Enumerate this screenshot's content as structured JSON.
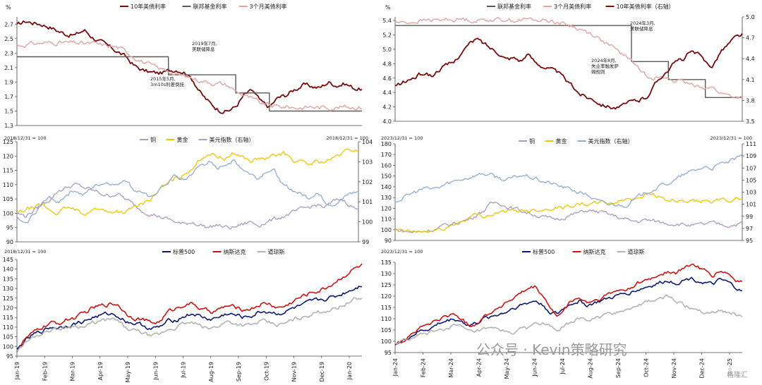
{
  "watermark": {
    "text": "公众号 · Kevin策略研究",
    "corner": "格隆汇"
  },
  "colors": {
    "dark_red": "#7b0a0a",
    "light_pink": "#e4a4a4",
    "grey": "#5a5a5a",
    "copper": "#a99bc4",
    "gold": "#f2c400",
    "dxy": "#8fadd6",
    "sp500": "#0b1a7a",
    "nasdaq": "#d01414",
    "dow": "#b4b4b4"
  },
  "chart_data": [
    {
      "id": "rates_2019",
      "type": "line",
      "unit": "%",
      "legend": [
        "10年美债利率",
        "联邦基金利率",
        "3个月美债利率"
      ],
      "yticks": [
        "2.7",
        "2.5",
        "2.3",
        "2.1",
        "1.9",
        "1.7",
        "1.5",
        "1.3"
      ],
      "ylim": [
        1.3,
        2.8
      ],
      "annotations": [
        "2015年5月,\n3m10s利差倒挂",
        "2019年7月,\n美联储降息"
      ],
      "series": [
        {
          "name": "10年美债利率",
          "values": [
            2.68,
            2.74,
            2.72,
            2.7,
            2.66,
            2.6,
            2.56,
            2.55,
            2.62,
            2.52,
            2.45,
            2.38,
            2.32,
            2.24,
            2.12,
            2.06,
            2.03,
            2.02,
            2.05,
            2.08,
            2.04,
            1.92,
            1.72,
            1.6,
            1.52,
            1.5,
            1.56,
            1.72,
            1.78,
            1.62,
            1.55,
            1.68,
            1.72,
            1.8,
            1.86,
            1.84,
            1.82,
            1.9,
            1.86,
            1.88,
            1.82,
            1.8
          ]
        },
        {
          "name": "联邦基金利率",
          "values": [
            2.25,
            2.25,
            2.25,
            2.25,
            2.25,
            2.25,
            2.25,
            2.25,
            2.25,
            2.25,
            2.25,
            2.25,
            2.25,
            2.25,
            2.25,
            2.25,
            2.25,
            2.25,
            2.0,
            2.0,
            2.0,
            2.0,
            2.0,
            2.0,
            2.0,
            2.0,
            1.75,
            1.75,
            1.75,
            1.75,
            1.5,
            1.5,
            1.5,
            1.5,
            1.5,
            1.5,
            1.5,
            1.5,
            1.5,
            1.5,
            1.5,
            1.5
          ]
        },
        {
          "name": "3个月美债利率",
          "values": [
            2.4,
            2.42,
            2.43,
            2.44,
            2.44,
            2.45,
            2.44,
            2.44,
            2.43,
            2.43,
            2.41,
            2.4,
            2.38,
            2.32,
            2.25,
            2.18,
            2.12,
            2.08,
            2.06,
            2.0,
            1.98,
            1.95,
            1.92,
            1.9,
            1.88,
            1.86,
            1.78,
            1.72,
            1.66,
            1.6,
            1.58,
            1.56,
            1.56,
            1.55,
            1.55,
            1.56,
            1.55,
            1.55,
            1.55,
            1.56,
            1.56,
            1.55
          ]
        }
      ]
    },
    {
      "id": "rates_2024",
      "type": "line",
      "unit": "%",
      "legend": [
        "联邦基金利率",
        "3个月美债利率",
        "10年美债利率（右轴）"
      ],
      "yticks": [
        "5.4",
        "5.2",
        "5.0",
        "4.8",
        "4.6",
        "4.4",
        "4.2",
        "4.0"
      ],
      "ylim": [
        4.0,
        5.45
      ],
      "yticks_right": [
        "5.0",
        "4.7",
        "4.4",
        "4.1",
        "3.8",
        "3.5"
      ],
      "ylim_right": [
        3.5,
        5.0
      ],
      "annotations": [
        "2024年3月,\n美联储降息",
        "2024年8月,\n失业率触发萨\n姆规则"
      ],
      "series": [
        {
          "name": "联邦基金利率",
          "values": [
            5.33,
            5.33,
            5.33,
            5.33,
            5.33,
            5.33,
            5.33,
            5.33,
            5.33,
            5.33,
            5.33,
            5.33,
            5.33,
            5.33,
            5.33,
            5.33,
            5.33,
            5.33,
            5.33,
            5.33,
            5.33,
            5.33,
            5.33,
            5.33,
            5.33,
            5.33,
            5.33,
            5.33,
            5.33,
            5.33,
            5.33,
            5.33,
            4.83,
            4.83,
            4.83,
            4.83,
            4.83,
            4.58,
            4.58,
            4.58,
            4.58,
            4.58,
            4.33,
            4.33,
            4.33,
            4.33,
            4.33,
            4.33
          ]
        },
        {
          "name": "3个月美债利率",
          "values": [
            5.38,
            5.37,
            5.38,
            5.39,
            5.4,
            5.41,
            5.4,
            5.42,
            5.41,
            5.42,
            5.41,
            5.4,
            5.41,
            5.42,
            5.41,
            5.42,
            5.4,
            5.41,
            5.42,
            5.4,
            5.41,
            5.4,
            5.38,
            5.35,
            5.32,
            5.28,
            5.24,
            5.2,
            5.12,
            5.05,
            4.98,
            4.92,
            4.85,
            4.72,
            4.65,
            4.62,
            4.6,
            4.6,
            4.56,
            4.54,
            4.5,
            4.5,
            4.48,
            4.46,
            4.4,
            4.36,
            4.34,
            4.33
          ]
        },
        {
          "name": "10年美债利率（右轴）",
          "values": [
            4.0,
            4.05,
            4.1,
            4.15,
            4.2,
            4.15,
            4.25,
            4.3,
            4.35,
            4.5,
            4.6,
            4.68,
            4.62,
            4.55,
            4.5,
            4.4,
            4.42,
            4.38,
            4.45,
            4.35,
            4.3,
            4.25,
            4.2,
            4.1,
            4.0,
            3.9,
            3.85,
            3.82,
            3.75,
            3.72,
            3.7,
            3.72,
            3.78,
            3.8,
            3.85,
            4.0,
            4.15,
            4.25,
            4.35,
            4.4,
            4.5,
            4.45,
            4.35,
            4.3,
            4.5,
            4.6,
            4.7,
            4.75
          ]
        }
      ]
    },
    {
      "id": "assets_2019",
      "type": "line",
      "note": "2018/12/31 = 100",
      "note_right": "2018/12/31 = 100",
      "legend": [
        "铜",
        "黄金",
        "美元指数（右轴）"
      ],
      "yticks": [
        "125",
        "120",
        "115",
        "110",
        "105",
        "100",
        "95",
        "90"
      ],
      "ylim": [
        90,
        125
      ],
      "yticks_right": [
        "104",
        "103",
        "102",
        "101",
        "100",
        "99"
      ],
      "ylim_right": [
        99,
        104
      ],
      "series": [
        {
          "name": "铜",
          "values": [
            100,
            99,
            101,
            103,
            105,
            108,
            109,
            110,
            109,
            108,
            107,
            106,
            107,
            105,
            103,
            101,
            100,
            99,
            98,
            97,
            96,
            97,
            96,
            95,
            96,
            95,
            95,
            96,
            97,
            96,
            97,
            98,
            99,
            100,
            101,
            102,
            103,
            102,
            104,
            105,
            103,
            101
          ]
        },
        {
          "name": "黄金",
          "values": [
            100,
            101,
            102,
            103,
            101,
            100,
            102,
            101,
            100,
            101,
            102,
            100,
            101,
            100,
            102,
            103,
            105,
            108,
            110,
            112,
            113,
            116,
            119,
            121,
            120,
            119,
            121,
            120,
            118,
            119,
            119,
            120,
            121,
            119,
            118,
            117,
            118,
            118,
            119,
            121,
            122,
            122
          ]
        },
        {
          "name": "美元指数（右轴）",
          "values": [
            100.2,
            99.8,
            100.4,
            100.9,
            101.2,
            101.0,
            101.4,
            101.6,
            101.3,
            101.7,
            101.9,
            102.0,
            101.8,
            102.2,
            101.6,
            101.5,
            101.1,
            101.6,
            101.9,
            102.3,
            102.0,
            102.4,
            102.8,
            103.0,
            102.6,
            102.9,
            103.1,
            102.7,
            102.4,
            102.2,
            102.6,
            102.5,
            101.8,
            101.6,
            101.4,
            101.2,
            101.5,
            101.0,
            100.9,
            101.1,
            101.4,
            101.5
          ]
        }
      ]
    },
    {
      "id": "assets_2024",
      "type": "line",
      "note": "2023/12/31 = 100",
      "note_right": "2023/12/31 = 100",
      "legend": [
        "铜",
        "黄金",
        "美元指数（右轴）"
      ],
      "yticks": [
        "180",
        "170",
        "160",
        "150",
        "140",
        "130",
        "120",
        "110",
        "100",
        "90"
      ],
      "ylim": [
        90,
        180
      ],
      "yticks_right": [
        "111",
        "109",
        "107",
        "105",
        "103",
        "101",
        "99",
        "97",
        "95"
      ],
      "ylim_right": [
        95,
        111
      ],
      "series": [
        {
          "name": "铜",
          "values": [
            100,
            99,
            98,
            98,
            99,
            100,
            102,
            104,
            106,
            108,
            110,
            114,
            118,
            124,
            126,
            122,
            120,
            118,
            116,
            114,
            112,
            110,
            110,
            112,
            114,
            116,
            118,
            117,
            116,
            114,
            112,
            110,
            108,
            108,
            109,
            108,
            107,
            106,
            106,
            105,
            104,
            104,
            105,
            106,
            105,
            104,
            105,
            106
          ]
        },
        {
          "name": "黄金",
          "values": [
            99,
            99,
            98,
            98,
            98,
            99,
            100,
            102,
            105,
            108,
            111,
            114,
            113,
            114,
            116,
            117,
            117,
            118,
            118,
            119,
            119,
            120,
            121,
            121,
            123,
            124,
            124,
            124,
            125,
            125,
            126,
            128,
            129,
            131,
            133,
            133,
            130,
            127,
            126,
            126,
            125,
            126,
            127,
            126,
            127,
            128,
            128,
            130
          ]
        },
        {
          "name": "美元指数（右轴）",
          "values": [
            101.5,
            102.0,
            102.6,
            103.2,
            103.6,
            103.5,
            103.8,
            104.4,
            104.8,
            105.2,
            105.5,
            105.9,
            106.1,
            105.8,
            105.4,
            105.0,
            105.3,
            105.8,
            105.6,
            105.2,
            104.8,
            104.5,
            104.1,
            103.7,
            103.4,
            102.9,
            102.6,
            101.8,
            101.2,
            100.9,
            101.0,
            100.8,
            101.5,
            102.2,
            103.0,
            103.5,
            104.0,
            104.5,
            105.0,
            105.8,
            106.3,
            106.8,
            107.2,
            107.0,
            107.6,
            107.9,
            108.3,
            108.9
          ]
        }
      ]
    },
    {
      "id": "equities_2019",
      "type": "line",
      "note": "2018/12/31 = 100",
      "legend": [
        "标普500",
        "纳斯达克",
        "道琼斯"
      ],
      "yticks": [
        "145",
        "140",
        "135",
        "130",
        "125",
        "120",
        "115",
        "110",
        "105",
        "100",
        "95"
      ],
      "ylim": [
        95,
        145
      ],
      "xticks": [
        "Jan-19",
        "Feb-19",
        "Mar-19",
        "Apr-19",
        "May-19",
        "Jun-19",
        "Jul-19",
        "Aug-19",
        "Sep-19",
        "Oct-19",
        "Nov-19",
        "Dec-19",
        "Jan-20"
      ],
      "series": [
        {
          "name": "标普500",
          "values": [
            98,
            103,
            106,
            108,
            110,
            110,
            111,
            112,
            113,
            115,
            116,
            117,
            116,
            113,
            112,
            111,
            109,
            110,
            113,
            114,
            116,
            117,
            115,
            114,
            115,
            117,
            116,
            115,
            116,
            118,
            118,
            117,
            118,
            120,
            121,
            123,
            124,
            125,
            126,
            128,
            130,
            132
          ]
        },
        {
          "name": "纳斯达克",
          "values": [
            98,
            104,
            107,
            110,
            112,
            112,
            114,
            115,
            117,
            120,
            121,
            122,
            122,
            117,
            115,
            114,
            112,
            113,
            118,
            120,
            122,
            122,
            119,
            118,
            119,
            121,
            120,
            119,
            120,
            122,
            122,
            120,
            121,
            124,
            126,
            128,
            129,
            131,
            134,
            137,
            140,
            142
          ]
        },
        {
          "name": "道琼斯",
          "values": [
            98,
            102,
            105,
            107,
            109,
            109,
            110,
            111,
            110,
            112,
            113,
            114,
            113,
            109,
            108,
            107,
            105,
            106,
            109,
            110,
            112,
            112,
            110,
            109,
            111,
            113,
            112,
            111,
            111,
            113,
            112,
            111,
            112,
            114,
            115,
            117,
            118,
            119,
            120,
            122,
            124,
            125
          ]
        }
      ]
    },
    {
      "id": "equities_2024",
      "type": "line",
      "note": "2023/12/31 = 100",
      "legend": [
        "标普500",
        "纳斯达克",
        "道琼斯"
      ],
      "yticks": [
        "135",
        "130",
        "125",
        "120",
        "115",
        "110",
        "105",
        "100",
        "95"
      ],
      "ylim": [
        95,
        135
      ],
      "xticks": [
        "Jan-24",
        "Feb-24",
        "Mar-24",
        "Apr-24",
        "May-24",
        "Jun-24",
        "Jul-24",
        "Aug-24",
        "Sep-24",
        "Oct-24",
        "Nov-24",
        "Dec-24",
        "Jan-25"
      ],
      "series": [
        {
          "name": "标普500",
          "values": [
            99,
            100,
            102,
            104,
            105,
            106,
            108,
            109,
            110,
            109,
            107,
            108,
            110,
            111,
            112,
            113,
            115,
            116,
            117,
            118,
            116,
            113,
            112,
            115,
            117,
            118,
            116,
            117,
            118,
            119,
            120,
            121,
            122,
            123,
            124,
            125,
            126,
            127,
            126,
            127,
            128,
            127,
            126,
            125,
            127,
            126,
            124,
            122
          ]
        },
        {
          "name": "纳斯达克",
          "values": [
            99,
            100,
            103,
            105,
            107,
            108,
            110,
            111,
            112,
            110,
            107,
            108,
            111,
            113,
            115,
            117,
            119,
            121,
            123,
            124,
            120,
            115,
            110,
            115,
            118,
            119,
            117,
            118,
            119,
            121,
            122,
            123,
            124,
            126,
            127,
            128,
            130,
            131,
            130,
            132,
            134,
            133,
            131,
            129,
            131,
            130,
            127,
            126
          ]
        },
        {
          "name": "道琼斯",
          "values": [
            99,
            100,
            101,
            102,
            103,
            104,
            105,
            106,
            107,
            106,
            104,
            104,
            105,
            105,
            105,
            104,
            104,
            105,
            106,
            108,
            108,
            106,
            105,
            107,
            109,
            110,
            109,
            110,
            111,
            112,
            113,
            114,
            115,
            116,
            117,
            118,
            119,
            120,
            118,
            116,
            115,
            114,
            113,
            113,
            114,
            113,
            112,
            111
          ]
        }
      ]
    }
  ]
}
